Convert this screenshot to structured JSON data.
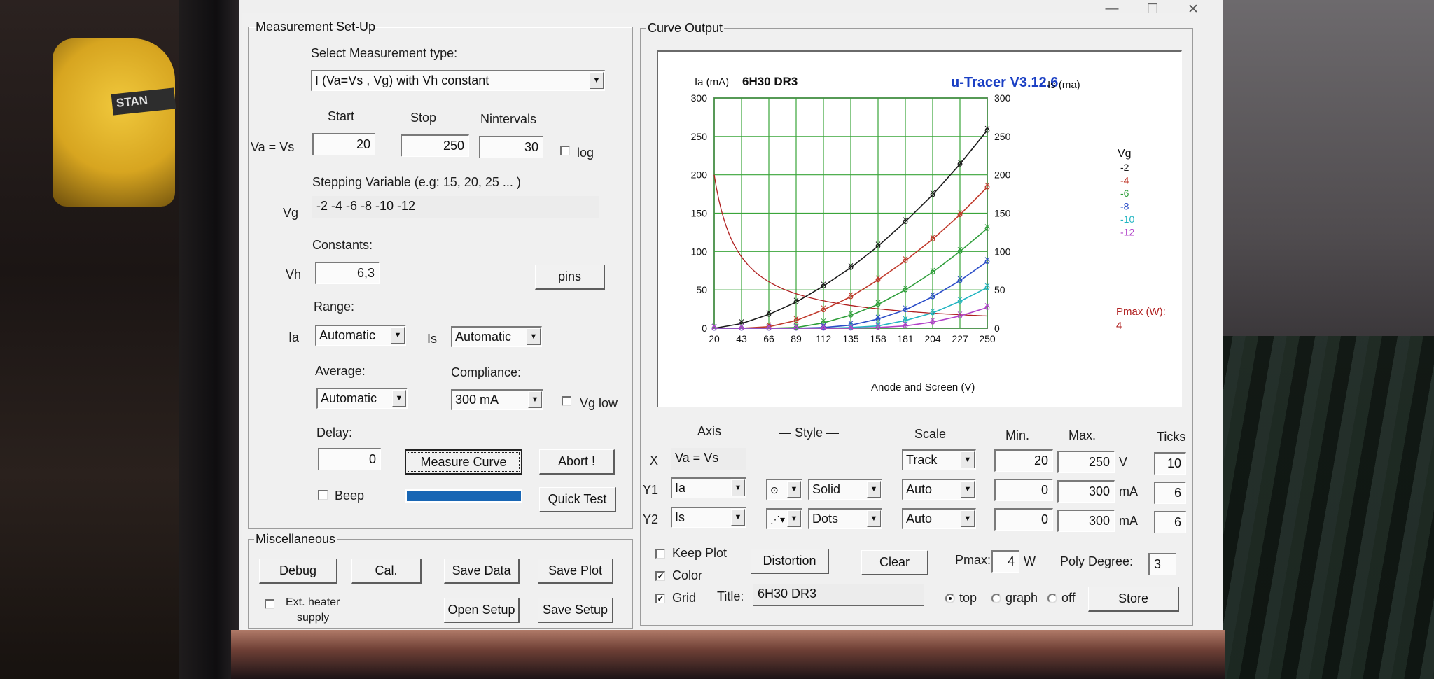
{
  "measurement": {
    "group_title": "Measurement Set-Up",
    "select_type_label": "Select Measurement type:",
    "type_value": "I (Va=Vs , Vg) with Vh constant",
    "start_label": "Start",
    "stop_label": "Stop",
    "nintervals_label": "Nintervals",
    "va_label": "Va = Vs",
    "start_value": "20",
    "stop_value": "250",
    "nintervals_value": "30",
    "log_label": "log",
    "log_checked": false,
    "stepping_label": "Stepping Variable (e.g: 15, 20, 25 ... )",
    "vg_label": "Vg",
    "vg_value": "-2 -4 -6 -8 -10 -12",
    "constants_label": "Constants:",
    "vh_label": "Vh",
    "vh_value": "6,3",
    "pins_label": "pins",
    "range_label": "Range:",
    "ia_label": "Ia",
    "ia_range": "Automatic",
    "is_label": "Is",
    "is_range": "Automatic",
    "average_label": "Average:",
    "average_value": "Automatic",
    "compliance_label": "Compliance:",
    "compliance_value": "300 mA",
    "vg_low_label": "Vg low",
    "vg_low_checked": false,
    "delay_label": "Delay:",
    "delay_value": "0",
    "measure_label": "Measure Curve",
    "abort_label": "Abort !",
    "beep_label": "Beep",
    "beep_checked": false,
    "quick_test_label": "Quick Test",
    "progress": 1.0,
    "progress_color": "#1866b4"
  },
  "misc": {
    "group_title": "Miscellaneous",
    "debug_label": "Debug",
    "cal_label": "Cal.",
    "save_data_label": "Save Data",
    "save_plot_label": "Save Plot",
    "ext_heater_label_1": "Ext. heater",
    "ext_heater_label_2": "supply",
    "ext_heater_checked": false,
    "open_setup_label": "Open Setup",
    "save_setup_label": "Save Setup"
  },
  "curve": {
    "group_title": "Curve Output",
    "axis_header": "Axis",
    "style_header": "— Style —",
    "scale_header": "Scale",
    "min_header": "Min.",
    "max_header": "Max.",
    "ticks_header": "Ticks",
    "x_row": {
      "label": "X",
      "axis": "Va = Vs",
      "scale": "Track",
      "min": "20",
      "max": "250",
      "unit": "V",
      "ticks": "10"
    },
    "y1_row": {
      "label": "Y1",
      "axis": "Ia",
      "style_icon": "line-marker-icon",
      "style": "Solid",
      "scale": "Auto",
      "min": "0",
      "max": "300",
      "unit": "mA",
      "ticks": "6"
    },
    "y2_row": {
      "label": "Y2",
      "axis": "Is",
      "style_icon": "dots-marker-icon",
      "style": "Dots",
      "scale": "Auto",
      "min": "0",
      "max": "300",
      "unit": "mA",
      "ticks": "6"
    },
    "keep_plot_label": "Keep Plot",
    "keep_plot_checked": false,
    "color_label": "Color",
    "color_checked": true,
    "grid_label": "Grid",
    "grid_checked": true,
    "distortion_label": "Distortion",
    "clear_label": "Clear",
    "pmax_label": "Pmax:",
    "pmax_value": "4",
    "pmax_unit": "W",
    "poly_label": "Poly Degree:",
    "poly_value": "3",
    "title_label": "Title:",
    "title_value": "6H30 DR3",
    "pos_top_label": "top",
    "pos_graph_label": "graph",
    "pos_off_label": "off",
    "pos_selected": "top",
    "store_label": "Store"
  },
  "chart_data": {
    "type": "line",
    "title": "6H30 DR3",
    "brand": "u-Tracer V3.12.6",
    "ylabel_left": "Ia (mA)",
    "ylabel_right": "Is (ma)",
    "xlabel": "Anode and Screen (V)",
    "xlim": [
      20,
      250
    ],
    "ylim": [
      0,
      300
    ],
    "x_ticks": [
      20,
      43,
      66,
      89,
      112,
      135,
      158,
      181,
      204,
      227,
      250
    ],
    "y_ticks": [
      0,
      50,
      100,
      150,
      200,
      250,
      300
    ],
    "grid": true,
    "legend_title": "Vg",
    "legend_position": "right",
    "pmax_legend": "Pmax (W):",
    "pmax_value_label": "4",
    "pmax_watts": 4,
    "pmax_color": "#b02020",
    "series": [
      {
        "name": "-2",
        "color": "#1a1a1a",
        "x": [
          20,
          43,
          66,
          89,
          112,
          135,
          158,
          181,
          204,
          227,
          250
        ],
        "y": [
          0,
          6,
          18,
          34,
          55,
          79,
          107,
          139,
          174,
          214,
          258
        ]
      },
      {
        "name": "-4",
        "color": "#c0392b",
        "x": [
          20,
          43,
          66,
          89,
          112,
          135,
          158,
          181,
          204,
          227,
          250
        ],
        "y": [
          0,
          0,
          2,
          10,
          24,
          41,
          63,
          88,
          116,
          148,
          184
        ]
      },
      {
        "name": "-6",
        "color": "#2e9e3a",
        "x": [
          20,
          43,
          66,
          89,
          112,
          135,
          158,
          181,
          204,
          227,
          250
        ],
        "y": [
          0,
          0,
          0,
          1,
          7,
          17,
          31,
          50,
          73,
          100,
          130
        ]
      },
      {
        "name": "-8",
        "color": "#2a4dc8",
        "x": [
          20,
          43,
          66,
          89,
          112,
          135,
          158,
          181,
          204,
          227,
          250
        ],
        "y": [
          0,
          0,
          0,
          0,
          1,
          4,
          12,
          24,
          41,
          62,
          87
        ]
      },
      {
        "name": "-10",
        "color": "#22b5c2",
        "x": [
          20,
          43,
          66,
          89,
          112,
          135,
          158,
          181,
          204,
          227,
          250
        ],
        "y": [
          0,
          0,
          0,
          0,
          0,
          1,
          3,
          10,
          20,
          35,
          53
        ]
      },
      {
        "name": "-12",
        "color": "#b042c8",
        "x": [
          20,
          43,
          66,
          89,
          112,
          135,
          158,
          181,
          204,
          227,
          250
        ],
        "y": [
          0,
          0,
          0,
          0,
          0,
          0,
          1,
          3,
          8,
          16,
          27
        ]
      }
    ]
  }
}
